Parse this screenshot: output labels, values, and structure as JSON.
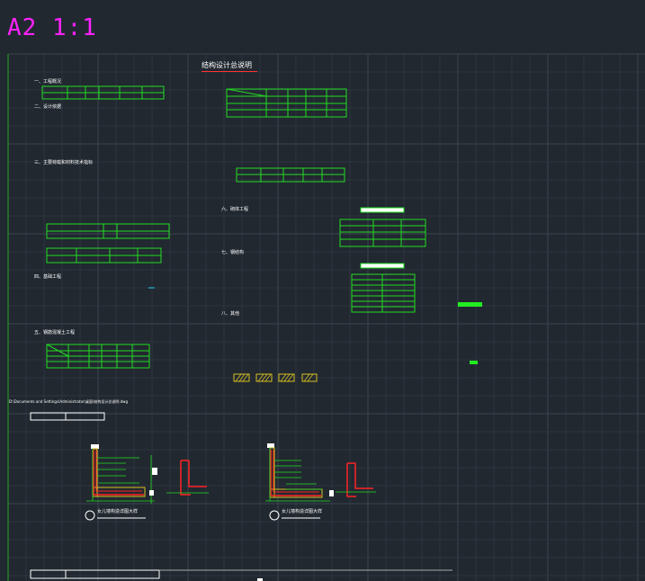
{
  "sheet": {
    "title": "A2 1:1",
    "doc_title": "结构设计总说明"
  },
  "sections": {
    "s1": "一、工程概况",
    "s2": "二、设计依据",
    "s3": "三、主要荷载和材料技术指标",
    "s4": "四、基础工程",
    "s5": "五、钢筋混凝土工程",
    "s6": "六、砌体工程",
    "s7": "七、钢结构",
    "s8": "八、其他"
  },
  "details": {
    "path": "D:\\Documents and Settings\\Administrator\\桌面\\结构设计总说明.dwg",
    "caption_left": "女儿墙构造详图大样",
    "caption_right": "女儿墙构造详图大样"
  },
  "colors": {
    "background": "#212830",
    "grid_minor": "#2d3540",
    "grid_major": "#3a4350",
    "table_green": "#22dd22",
    "title_magenta": "#ff22ff",
    "rebar_red": "#ff2222",
    "hatch_yellow": "#d8c020"
  }
}
